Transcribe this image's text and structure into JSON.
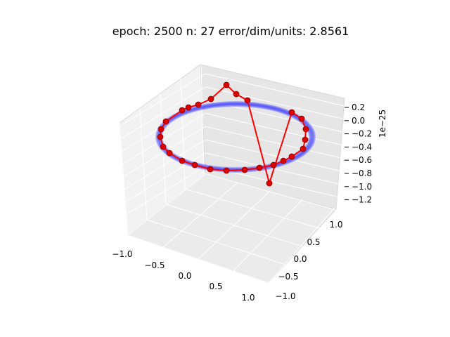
{
  "chart_data": {
    "type": "scatter",
    "title": "epoch: 2500 n: 27 error/dim/units: 2.8561",
    "xlabel": "",
    "ylabel": "",
    "zlabel": "",
    "projection": "3d",
    "grid": true,
    "xlim": [
      -1.15,
      1.15
    ],
    "ylim": [
      -1.15,
      1.15
    ],
    "zlim": [
      -1.3,
      0.3
    ],
    "z_offset_label": "1e−25",
    "x_ticks": [
      "−1.0",
      "−0.5",
      "0.0",
      "0.5",
      "1.0"
    ],
    "y_ticks": [
      "−1.0",
      "−0.5",
      "0.0",
      "0.5",
      "1.0"
    ],
    "z_ticks": [
      "0.2",
      "0.0",
      "−0.2",
      "−0.4",
      "−0.6",
      "−0.8",
      "−1.0",
      "−1.2"
    ],
    "series": [
      {
        "type": "ring",
        "color": "#3a3aff",
        "description_values": {
          "radius": 1.0,
          "z": 0.0,
          "points": 200
        }
      },
      {
        "type": "line+markers",
        "color": "#ff0000",
        "marker_color": "#cc0000",
        "note": "27 units in (angle_deg, z*1e25)",
        "points": [
          [
            0,
            0.0
          ],
          [
            13,
            0.0
          ],
          [
            26,
            0.0
          ],
          [
            40,
            0.0
          ],
          [
            53,
            0.0
          ],
          [
            66,
            0.0
          ],
          [
            80,
            0.0
          ],
          [
            93,
            0.0
          ],
          [
            106,
            0.0
          ],
          [
            120,
            0.0
          ],
          [
            133,
            0.0
          ],
          [
            147,
            0.0
          ],
          [
            160,
            0.0
          ],
          [
            173,
            0.0
          ],
          [
            186,
            0.0
          ],
          [
            200,
            0.0
          ],
          [
            213,
            0.0
          ],
          [
            226,
            0.0
          ],
          [
            240,
            0.0
          ],
          [
            253,
            0.0
          ],
          [
            266,
            0.0
          ],
          [
            280,
            0.0
          ],
          [
            293,
            -1.05
          ],
          [
            306,
            0.3
          ],
          [
            318,
            0.6
          ],
          [
            330,
            0.3
          ],
          [
            345,
            0.0
          ]
        ]
      }
    ]
  }
}
